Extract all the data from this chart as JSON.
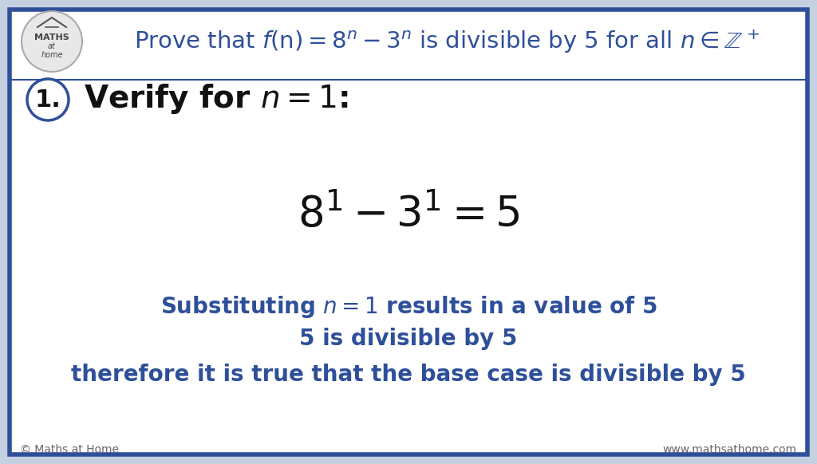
{
  "bg_outer": "#c5d0e0",
  "bg_inner": "#ffffff",
  "border_color": "#2e4f9a",
  "border_lw": 4.0,
  "title_color": "#2e4f9a",
  "body_color": "#2e4f9a",
  "black_color": "#111111",
  "gray_color": "#666666",
  "title_text": "Prove that $f(\\mathrm{n}) = 8^n - 3^n$ is divisible by 5 for all $n \\in \\mathbb{Z}^+$",
  "step_label": "1.",
  "step_text": "Verify for $n = 1$:",
  "equation": "$8^1 - 3^1 = 5$",
  "line1": "Substituting $n = 1$ results in a value of 5",
  "line2": "5 is divisible by 5",
  "line3": "therefore it is true that the base case is divisible by 5",
  "footer_left": "© Maths at Home",
  "footer_right": "www.mathsathome.com",
  "title_fontsize": 21,
  "step_label_fontsize": 22,
  "step_text_fontsize": 28,
  "equation_fontsize": 38,
  "body_fontsize": 20,
  "footer_fontsize": 10,
  "logo_circle_color": "#e8e8e8",
  "logo_border_color": "#aaaaaa",
  "step_circle_color": "#ffffff",
  "step_circle_border": "#2e4f9a",
  "divider_color": "#2e4f9a",
  "divider_lw": 1.5
}
